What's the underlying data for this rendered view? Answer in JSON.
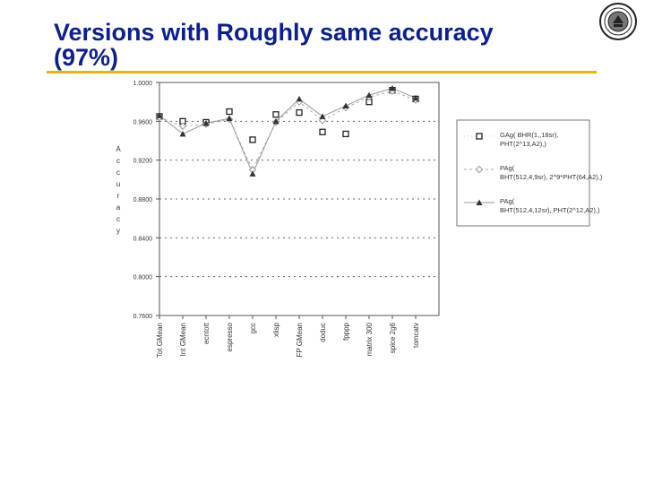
{
  "slide": {
    "title": "Versions with Roughly same accuracy (97%)"
  },
  "colors": {
    "title": "#0b1f8f",
    "rule": "#e8b800"
  },
  "chart_data": {
    "type": "line",
    "categories": [
      "Tot GMean",
      "Int GMean",
      "ecntott",
      "espresso",
      "gcc",
      "xlisp",
      "FP GMean",
      "doduc",
      "fpppp",
      "matrix 300",
      "spice 2g6",
      "tomcatv"
    ],
    "ylabel": "Accuracy",
    "ylim": [
      0.76,
      1.0
    ],
    "yticks": [
      1.0,
      0.96,
      0.92,
      0.88,
      0.84,
      0.8,
      0.76
    ],
    "ytick_labels": [
      "1.0000",
      "0.9600",
      "0.9200",
      "0.8800",
      "0.8400",
      "0.8000",
      "0.7600"
    ],
    "grid": true,
    "legend_position": "right",
    "series": [
      {
        "name": "GAg( BHR(1,,18sr), PHT(2^13,A2),)",
        "marker": "square",
        "line": "none",
        "values": [
          0.965,
          0.96,
          0.959,
          0.97,
          0.941,
          0.967,
          0.969,
          0.949,
          0.947,
          0.98,
          0.992,
          0.983
        ]
      },
      {
        "name": "PAg( BHT(512,4,9sr), 2^9*PHT(64,A2),)",
        "marker": "diamond",
        "line": "dashed",
        "values": [
          0.964,
          0.955,
          0.957,
          0.962,
          0.91,
          0.959,
          0.98,
          0.961,
          0.974,
          0.985,
          0.991,
          0.982
        ]
      },
      {
        "name": "PAg( BHT(512,4,12sr), PHT(2^12,A2),)",
        "marker": "triangle",
        "line": "solid",
        "values": [
          0.966,
          0.947,
          0.958,
          0.963,
          0.906,
          0.96,
          0.983,
          0.965,
          0.976,
          0.987,
          0.994,
          0.984
        ]
      }
    ]
  }
}
